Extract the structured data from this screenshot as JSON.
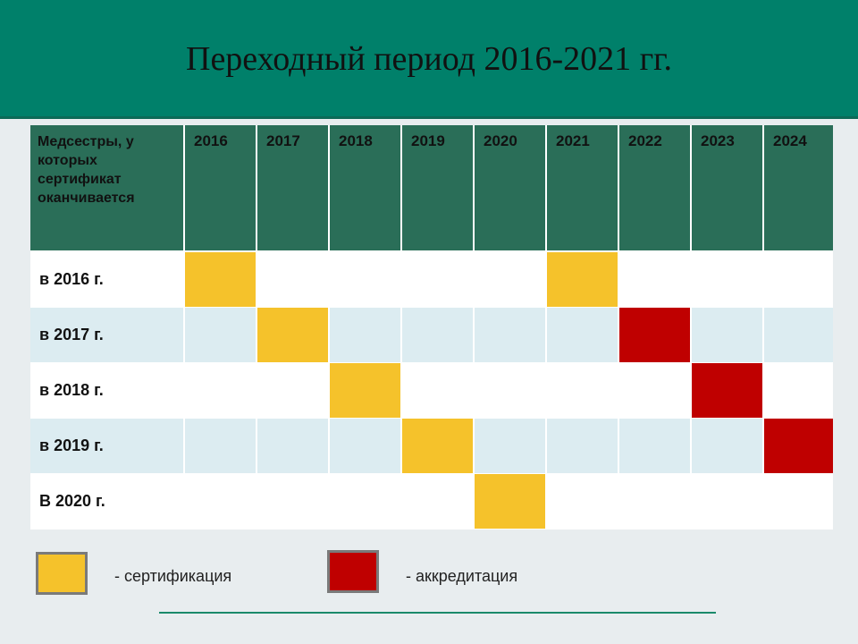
{
  "title": "Переходный период 2016-2021 гг.",
  "table": {
    "row_header_label": "Медсестры, у которых сертификат оканчивается",
    "years": [
      "2016",
      "2017",
      "2018",
      "2019",
      "2020",
      "2021",
      "2022",
      "2023",
      "2024"
    ],
    "rows": [
      {
        "label": "в 2016 г.",
        "cells": [
          "cert",
          "",
          "",
          "",
          "",
          "cert",
          "",
          "",
          ""
        ]
      },
      {
        "label": "в 2017 г.",
        "cells": [
          "",
          "cert",
          "",
          "",
          "",
          "",
          "accr",
          "",
          ""
        ]
      },
      {
        "label": "в 2018 г.",
        "cells": [
          "",
          "",
          "cert",
          "",
          "",
          "",
          "",
          "accr",
          ""
        ]
      },
      {
        "label": "в 2019 г.",
        "cells": [
          "",
          "",
          "",
          "cert",
          "",
          "",
          "",
          "",
          "accr"
        ]
      },
      {
        "label": "В 2020 г.",
        "cells": [
          "",
          "",
          "",
          "",
          "cert",
          "",
          "",
          "",
          ""
        ]
      }
    ]
  },
  "legend": {
    "certification": {
      "label": "- сертификация",
      "color": "#f5c22b"
    },
    "accreditation": {
      "label": "- аккредитация",
      "color": "#bf0000"
    }
  },
  "colors": {
    "header_bar": "#00806a",
    "table_header": "#2a6e58",
    "row_alt": "#dcecf1"
  }
}
